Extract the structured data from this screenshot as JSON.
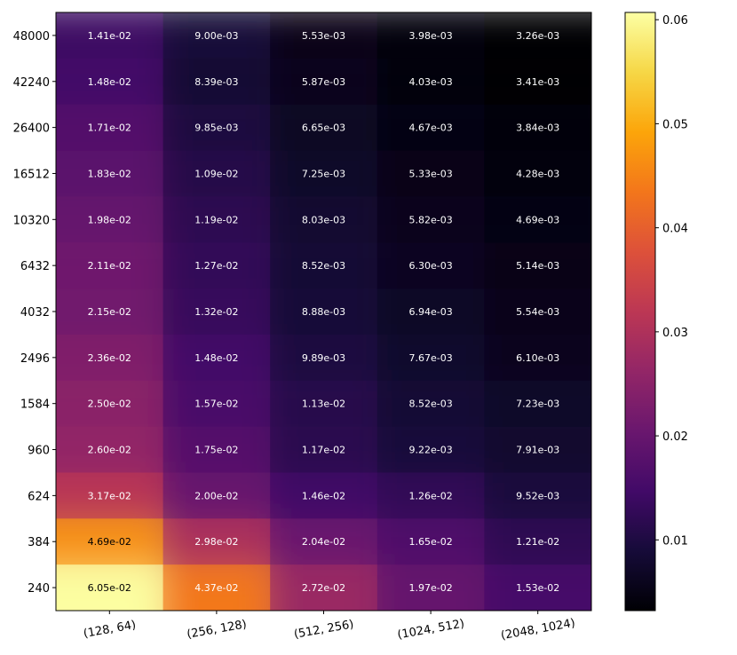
{
  "chart_data": {
    "type": "heatmap",
    "title": "",
    "xlabel": "",
    "ylabel": "",
    "x_categories": [
      "(128, 64)",
      "(256, 128)",
      "(512, 256)",
      "(1024, 512)",
      "(2048, 1024)"
    ],
    "y_categories": [
      "48000",
      "42240",
      "26400",
      "16512",
      "10320",
      "6432",
      "4032",
      "2496",
      "1584",
      "960",
      "624",
      "384",
      "240"
    ],
    "cell_labels": [
      [
        "1.41e-02",
        "9.00e-03",
        "5.53e-03",
        "3.98e-03",
        "3.26e-03"
      ],
      [
        "1.48e-02",
        "8.39e-03",
        "5.87e-03",
        "4.03e-03",
        "3.41e-03"
      ],
      [
        "1.71e-02",
        "9.85e-03",
        "6.65e-03",
        "4.67e-03",
        "3.84e-03"
      ],
      [
        "1.83e-02",
        "1.09e-02",
        "7.25e-03",
        "5.33e-03",
        "4.28e-03"
      ],
      [
        "1.98e-02",
        "1.19e-02",
        "8.03e-03",
        "5.82e-03",
        "4.69e-03"
      ],
      [
        "2.11e-02",
        "1.27e-02",
        "8.52e-03",
        "6.30e-03",
        "5.14e-03"
      ],
      [
        "2.15e-02",
        "1.32e-02",
        "8.88e-03",
        "6.94e-03",
        "5.54e-03"
      ],
      [
        "2.36e-02",
        "1.48e-02",
        "9.89e-03",
        "7.67e-03",
        "6.10e-03"
      ],
      [
        "2.50e-02",
        "1.57e-02",
        "1.13e-02",
        "8.52e-03",
        "7.23e-03"
      ],
      [
        "2.60e-02",
        "1.75e-02",
        "1.17e-02",
        "9.22e-03",
        "7.91e-03"
      ],
      [
        "3.17e-02",
        "2.00e-02",
        "1.46e-02",
        "1.26e-02",
        "9.52e-03"
      ],
      [
        "4.69e-02",
        "2.98e-02",
        "2.04e-02",
        "1.65e-02",
        "1.21e-02"
      ],
      [
        "6.05e-02",
        "4.37e-02",
        "2.72e-02",
        "1.97e-02",
        "1.53e-02"
      ]
    ],
    "colormap": "inferno",
    "color_range": [
      0.0032,
      0.0607
    ],
    "colorbar_ticks": [
      "0.01",
      "0.02",
      "0.03",
      "0.04",
      "0.05",
      "0.06"
    ],
    "grid": false
  }
}
